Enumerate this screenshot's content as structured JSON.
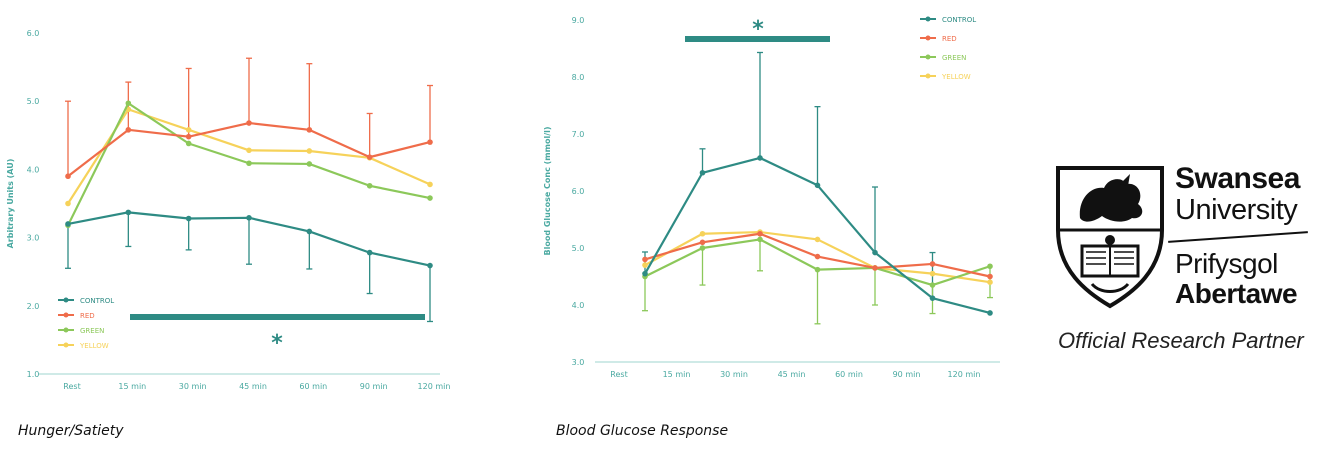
{
  "chart_data": [
    {
      "type": "line",
      "caption": "Hunger/Satiety",
      "ylabel": "Arbitrary Units (AU)",
      "ylim": [
        1.0,
        6.0
      ],
      "yticks": [
        "1.0",
        "2.0",
        "3.0",
        "4.0",
        "5.0",
        "6.0"
      ],
      "categories": [
        "Rest",
        "15 min",
        "30 min",
        "45 min",
        "60 min",
        "90 min",
        "120 min"
      ],
      "legend_position": "bottom-left",
      "significance": "*",
      "series": [
        {
          "name": "CONTROL",
          "color": "#2e8b84",
          "values": [
            3.2,
            3.37,
            3.28,
            3.29,
            3.09,
            2.78,
            2.59
          ],
          "err_down": [
            0.65,
            0.5,
            0.46,
            0.68,
            0.55,
            0.6,
            0.82
          ],
          "err_up": [
            0,
            0,
            0,
            0,
            0,
            0,
            0
          ]
        },
        {
          "name": "RED",
          "color": "#ef6c4a",
          "values": [
            3.9,
            4.58,
            4.48,
            4.68,
            4.58,
            4.18,
            4.4
          ],
          "err_up": [
            1.1,
            0.7,
            1.0,
            0.95,
            0.97,
            0.64,
            0.83
          ],
          "err_down": [
            0,
            0,
            0,
            0,
            0,
            0,
            0
          ]
        },
        {
          "name": "GREEN",
          "color": "#8cc85a",
          "values": [
            3.18,
            4.97,
            4.38,
            4.09,
            4.08,
            3.76,
            3.58
          ],
          "err_up": [
            0,
            0,
            0,
            0,
            0,
            0,
            0
          ],
          "err_down": [
            0,
            0,
            0,
            0,
            0,
            0,
            0
          ]
        },
        {
          "name": "YELLOW",
          "color": "#f6d25a",
          "values": [
            3.5,
            4.88,
            4.58,
            4.28,
            4.27,
            4.17,
            3.78
          ],
          "err_up": [
            0,
            0,
            0,
            0,
            0,
            0,
            0
          ],
          "err_down": [
            0,
            0,
            0,
            0,
            0,
            0,
            0
          ]
        }
      ]
    },
    {
      "type": "line",
      "caption": "Blood Glucose Response",
      "ylabel": "Blood Glucose Conc (mmol/l)",
      "ylim": [
        3.0,
        9.0
      ],
      "yticks": [
        "3.0",
        "4.0",
        "5.0",
        "6.0",
        "7.0",
        "8.0",
        "9.0"
      ],
      "categories": [
        "Rest",
        "15 min",
        "30 min",
        "45 min",
        "60 min",
        "90 min",
        "120 min"
      ],
      "legend_position": "top-right",
      "significance": "*",
      "series": [
        {
          "name": "CONTROL",
          "color": "#2e8b84",
          "values": [
            4.55,
            6.32,
            6.58,
            6.1,
            4.92,
            4.12,
            3.86
          ],
          "err_up": [
            0.38,
            0.42,
            1.85,
            1.38,
            1.15,
            0.8,
            0
          ],
          "err_down": [
            0,
            0,
            0,
            0,
            0,
            0,
            0
          ]
        },
        {
          "name": "RED",
          "color": "#ef6c4a",
          "values": [
            4.8,
            5.1,
            5.25,
            4.85,
            4.65,
            4.72,
            4.5
          ],
          "err_up": [
            0,
            0,
            0,
            0,
            0,
            0,
            0
          ],
          "err_down": [
            0,
            0,
            0,
            0,
            0,
            0,
            0
          ]
        },
        {
          "name": "GREEN",
          "color": "#8cc85a",
          "values": [
            4.5,
            5.0,
            5.15,
            4.62,
            4.65,
            4.35,
            4.68
          ],
          "err_up": [
            0,
            0,
            0,
            0,
            0,
            0,
            0
          ],
          "err_down": [
            0.6,
            0.65,
            0.55,
            0.95,
            0.65,
            0.5,
            0.55
          ]
        },
        {
          "name": "YELLOW",
          "color": "#f6d25a",
          "values": [
            4.7,
            5.25,
            5.28,
            5.15,
            4.65,
            4.55,
            4.4
          ],
          "err_up": [
            0,
            0,
            0,
            0,
            0,
            0,
            0
          ],
          "err_down": [
            0,
            0,
            0,
            0,
            0,
            0,
            0
          ]
        }
      ]
    }
  ],
  "logo": {
    "line1": "Swansea",
    "line2": "University",
    "line3": "Prifysgol",
    "line4": "Abertawe",
    "partner": "Official Research Partner"
  },
  "colors": {
    "axis": "#9fd4cf",
    "tick_text": "#4aa9a1",
    "sig_bar": "#2e8b84"
  }
}
